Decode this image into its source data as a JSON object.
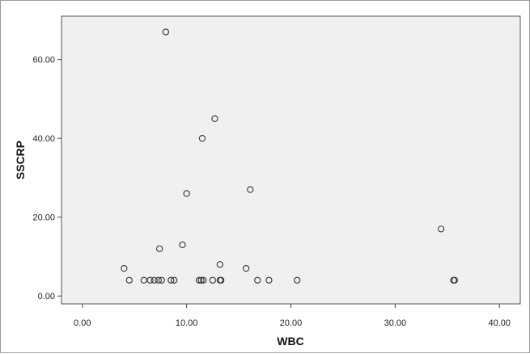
{
  "chart_data": {
    "type": "scatter",
    "xlabel": "WBC",
    "ylabel": "SSCRP",
    "xlim": [
      -2,
      42
    ],
    "ylim": [
      -2,
      71
    ],
    "x_ticks": [
      {
        "value": 0,
        "label": "0.00"
      },
      {
        "value": 10,
        "label": "10.00"
      },
      {
        "value": 20,
        "label": "20.00"
      },
      {
        "value": 30,
        "label": "30.00"
      },
      {
        "value": 40,
        "label": "40.00"
      }
    ],
    "y_ticks": [
      {
        "value": 0,
        "label": "0.00"
      },
      {
        "value": 20,
        "label": "20.00"
      },
      {
        "value": 40,
        "label": "40.00"
      },
      {
        "value": 60,
        "label": "60.00"
      }
    ],
    "grid": false,
    "plot_background": "#f0f0f0",
    "marker_color": "#333333",
    "points": [
      {
        "x": 8.0,
        "y": 67
      },
      {
        "x": 12.7,
        "y": 45
      },
      {
        "x": 11.5,
        "y": 40
      },
      {
        "x": 16.1,
        "y": 27
      },
      {
        "x": 10.0,
        "y": 26
      },
      {
        "x": 34.4,
        "y": 17
      },
      {
        "x": 9.6,
        "y": 13
      },
      {
        "x": 7.4,
        "y": 12
      },
      {
        "x": 13.2,
        "y": 8
      },
      {
        "x": 4.0,
        "y": 7
      },
      {
        "x": 15.7,
        "y": 7
      },
      {
        "x": 4.5,
        "y": 4
      },
      {
        "x": 5.9,
        "y": 4
      },
      {
        "x": 6.5,
        "y": 4
      },
      {
        "x": 6.9,
        "y": 4
      },
      {
        "x": 7.3,
        "y": 4
      },
      {
        "x": 7.6,
        "y": 4
      },
      {
        "x": 8.5,
        "y": 4
      },
      {
        "x": 8.8,
        "y": 4
      },
      {
        "x": 11.2,
        "y": 4
      },
      {
        "x": 11.4,
        "y": 4
      },
      {
        "x": 11.6,
        "y": 4
      },
      {
        "x": 12.5,
        "y": 4
      },
      {
        "x": 13.2,
        "y": 4
      },
      {
        "x": 13.3,
        "y": 4
      },
      {
        "x": 16.8,
        "y": 4
      },
      {
        "x": 17.9,
        "y": 4
      },
      {
        "x": 20.6,
        "y": 4
      },
      {
        "x": 35.6,
        "y": 4
      },
      {
        "x": 35.7,
        "y": 4
      }
    ]
  }
}
